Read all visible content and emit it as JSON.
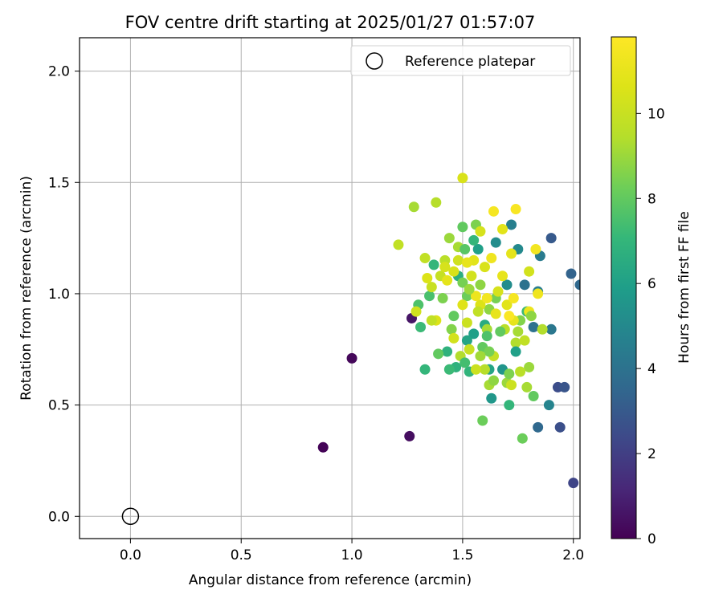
{
  "chart_data": {
    "type": "scatter",
    "title": "FOV centre drift starting at 2025/01/27 01:57:07",
    "xlabel": "Angular distance from reference (arcmin)",
    "ylabel": "Rotation from reference (arcmin)",
    "xlim": [
      -0.23,
      2.03
    ],
    "ylim": [
      -0.1,
      2.15
    ],
    "x_ticks": [
      "0.0",
      "0.5",
      "1.0",
      "1.5",
      "2.0"
    ],
    "y_ticks": [
      "0.0",
      "0.5",
      "1.0",
      "1.5",
      "2.0"
    ],
    "grid": true,
    "legend": {
      "placement": "top-right",
      "entries": [
        "Reference platepar"
      ]
    },
    "reference_point": {
      "x": 0.0,
      "y": 0.0,
      "label": "Reference platepar"
    },
    "colorbar": {
      "label": "Hours from first FF file",
      "colormap": "viridis",
      "range": [
        0,
        11.8
      ],
      "ticks": [
        "0",
        "2",
        "4",
        "6",
        "8",
        "10"
      ]
    },
    "points": [
      {
        "x": 0.87,
        "y": 0.31,
        "c": 0.1
      },
      {
        "x": 1.0,
        "y": 0.71,
        "c": 0.2
      },
      {
        "x": 1.26,
        "y": 0.36,
        "c": 0.4
      },
      {
        "x": 1.27,
        "y": 0.89,
        "c": 0.6
      },
      {
        "x": 2.0,
        "y": 0.15,
        "c": 2.2
      },
      {
        "x": 1.93,
        "y": 0.58,
        "c": 2.5
      },
      {
        "x": 1.94,
        "y": 0.4,
        "c": 2.6
      },
      {
        "x": 1.96,
        "y": 0.58,
        "c": 2.8
      },
      {
        "x": 1.9,
        "y": 1.25,
        "c": 3.0
      },
      {
        "x": 1.99,
        "y": 1.09,
        "c": 3.4
      },
      {
        "x": 2.03,
        "y": 1.04,
        "c": 3.6
      },
      {
        "x": 1.84,
        "y": 0.4,
        "c": 3.6
      },
      {
        "x": 1.82,
        "y": 0.85,
        "c": 4.0
      },
      {
        "x": 1.9,
        "y": 0.84,
        "c": 4.2
      },
      {
        "x": 1.78,
        "y": 1.04,
        "c": 4.0
      },
      {
        "x": 1.85,
        "y": 1.17,
        "c": 4.4
      },
      {
        "x": 1.72,
        "y": 1.31,
        "c": 4.6
      },
      {
        "x": 1.89,
        "y": 0.5,
        "c": 4.8
      },
      {
        "x": 1.84,
        "y": 1.01,
        "c": 4.5
      },
      {
        "x": 1.75,
        "y": 1.2,
        "c": 5.0
      },
      {
        "x": 1.65,
        "y": 1.23,
        "c": 5.2
      },
      {
        "x": 1.7,
        "y": 1.04,
        "c": 5.2
      },
      {
        "x": 1.68,
        "y": 0.66,
        "c": 5.5
      },
      {
        "x": 1.63,
        "y": 0.53,
        "c": 5.6
      },
      {
        "x": 1.57,
        "y": 1.2,
        "c": 6.0
      },
      {
        "x": 1.55,
        "y": 0.82,
        "c": 6.0
      },
      {
        "x": 1.62,
        "y": 0.66,
        "c": 6.2
      },
      {
        "x": 1.6,
        "y": 0.86,
        "c": 6.5
      },
      {
        "x": 1.52,
        "y": 0.79,
        "c": 6.2
      },
      {
        "x": 1.48,
        "y": 1.08,
        "c": 6.6
      },
      {
        "x": 1.43,
        "y": 0.74,
        "c": 6.8
      },
      {
        "x": 1.47,
        "y": 0.67,
        "c": 6.8
      },
      {
        "x": 1.53,
        "y": 0.65,
        "c": 6.9
      },
      {
        "x": 1.71,
        "y": 0.5,
        "c": 7.0
      },
      {
        "x": 1.77,
        "y": 0.35,
        "c": 8.2
      },
      {
        "x": 1.82,
        "y": 0.54,
        "c": 8.0
      },
      {
        "x": 1.44,
        "y": 0.66,
        "c": 7.2
      },
      {
        "x": 1.35,
        "y": 0.99,
        "c": 7.5
      },
      {
        "x": 1.31,
        "y": 0.85,
        "c": 7.2
      },
      {
        "x": 1.3,
        "y": 0.95,
        "c": 7.6
      },
      {
        "x": 1.33,
        "y": 0.66,
        "c": 7.0
      },
      {
        "x": 1.37,
        "y": 1.13,
        "c": 7.0
      },
      {
        "x": 1.5,
        "y": 1.3,
        "c": 8.0
      },
      {
        "x": 1.56,
        "y": 1.31,
        "c": 8.5
      },
      {
        "x": 1.55,
        "y": 1.24,
        "c": 7.0
      },
      {
        "x": 1.41,
        "y": 0.98,
        "c": 8.5
      },
      {
        "x": 1.46,
        "y": 0.9,
        "c": 8.0
      },
      {
        "x": 1.59,
        "y": 0.43,
        "c": 8.2
      },
      {
        "x": 1.59,
        "y": 0.76,
        "c": 8.0
      },
      {
        "x": 1.7,
        "y": 0.6,
        "c": 9.0
      },
      {
        "x": 1.74,
        "y": 0.78,
        "c": 9.4
      },
      {
        "x": 1.8,
        "y": 0.67,
        "c": 9.0
      },
      {
        "x": 1.76,
        "y": 0.88,
        "c": 8.6
      },
      {
        "x": 1.79,
        "y": 0.92,
        "c": 7.2
      },
      {
        "x": 1.65,
        "y": 0.98,
        "c": 8.4
      },
      {
        "x": 1.62,
        "y": 0.93,
        "c": 8.8
      },
      {
        "x": 1.52,
        "y": 0.99,
        "c": 8.2
      },
      {
        "x": 1.5,
        "y": 1.05,
        "c": 8.4
      },
      {
        "x": 1.45,
        "y": 0.84,
        "c": 8.6
      },
      {
        "x": 1.39,
        "y": 0.73,
        "c": 8.0
      },
      {
        "x": 1.28,
        "y": 1.39,
        "c": 9.2
      },
      {
        "x": 1.38,
        "y": 1.41,
        "c": 9.5
      },
      {
        "x": 1.44,
        "y": 1.25,
        "c": 9.0
      },
      {
        "x": 1.42,
        "y": 1.15,
        "c": 9.6
      },
      {
        "x": 1.33,
        "y": 1.16,
        "c": 9.8
      },
      {
        "x": 1.36,
        "y": 1.03,
        "c": 10.0
      },
      {
        "x": 1.4,
        "y": 1.08,
        "c": 9.9
      },
      {
        "x": 1.48,
        "y": 1.15,
        "c": 10.2
      },
      {
        "x": 1.54,
        "y": 1.08,
        "c": 10.3
      },
      {
        "x": 1.6,
        "y": 1.12,
        "c": 10.5
      },
      {
        "x": 1.58,
        "y": 0.95,
        "c": 10.6
      },
      {
        "x": 1.66,
        "y": 1.01,
        "c": 10.4
      },
      {
        "x": 1.7,
        "y": 0.95,
        "c": 10.8
      },
      {
        "x": 1.73,
        "y": 0.88,
        "c": 11.0
      },
      {
        "x": 1.69,
        "y": 0.84,
        "c": 9.6
      },
      {
        "x": 1.61,
        "y": 0.84,
        "c": 9.2
      },
      {
        "x": 1.57,
        "y": 0.92,
        "c": 9.8
      },
      {
        "x": 1.52,
        "y": 0.87,
        "c": 10.1
      },
      {
        "x": 1.38,
        "y": 0.88,
        "c": 10.6
      },
      {
        "x": 1.29,
        "y": 0.92,
        "c": 10.2
      },
      {
        "x": 1.21,
        "y": 1.22,
        "c": 9.8
      },
      {
        "x": 1.5,
        "y": 1.52,
        "c": 10.5
      },
      {
        "x": 1.58,
        "y": 1.28,
        "c": 10.4
      },
      {
        "x": 1.68,
        "y": 1.29,
        "c": 10.8
      },
      {
        "x": 1.64,
        "y": 1.37,
        "c": 11.5
      },
      {
        "x": 1.74,
        "y": 1.38,
        "c": 11.6
      },
      {
        "x": 1.72,
        "y": 1.18,
        "c": 10.9
      },
      {
        "x": 1.8,
        "y": 1.1,
        "c": 10.3
      },
      {
        "x": 1.83,
        "y": 1.2,
        "c": 11.4
      },
      {
        "x": 1.84,
        "y": 1.0,
        "c": 11.3
      },
      {
        "x": 1.8,
        "y": 0.92,
        "c": 11.2
      },
      {
        "x": 1.78,
        "y": 0.79,
        "c": 9.8
      },
      {
        "x": 1.76,
        "y": 0.65,
        "c": 9.6
      },
      {
        "x": 1.72,
        "y": 0.59,
        "c": 10.1
      },
      {
        "x": 1.62,
        "y": 0.59,
        "c": 9.2
      },
      {
        "x": 1.6,
        "y": 0.66,
        "c": 9.5
      },
      {
        "x": 1.56,
        "y": 0.66,
        "c": 10.1
      },
      {
        "x": 1.64,
        "y": 0.72,
        "c": 9.9
      },
      {
        "x": 1.49,
        "y": 0.72,
        "c": 9.4
      },
      {
        "x": 1.53,
        "y": 0.75,
        "c": 10.0
      },
      {
        "x": 1.46,
        "y": 0.8,
        "c": 10.3
      },
      {
        "x": 1.5,
        "y": 0.95,
        "c": 10.7
      },
      {
        "x": 1.56,
        "y": 0.99,
        "c": 11.2
      },
      {
        "x": 1.61,
        "y": 0.98,
        "c": 11.4
      },
      {
        "x": 1.65,
        "y": 0.91,
        "c": 11.0
      },
      {
        "x": 1.71,
        "y": 0.9,
        "c": 11.7
      },
      {
        "x": 1.73,
        "y": 0.98,
        "c": 11.5
      },
      {
        "x": 1.68,
        "y": 1.08,
        "c": 11.0
      },
      {
        "x": 1.63,
        "y": 1.16,
        "c": 11.3
      },
      {
        "x": 1.55,
        "y": 1.15,
        "c": 10.8
      },
      {
        "x": 1.46,
        "y": 1.1,
        "c": 10.5
      },
      {
        "x": 1.43,
        "y": 1.06,
        "c": 10.9
      },
      {
        "x": 1.53,
        "y": 1.02,
        "c": 9.0
      },
      {
        "x": 1.58,
        "y": 1.04,
        "c": 8.8
      },
      {
        "x": 1.48,
        "y": 1.21,
        "c": 9.2
      },
      {
        "x": 1.51,
        "y": 1.2,
        "c": 7.8
      },
      {
        "x": 1.61,
        "y": 0.81,
        "c": 7.6
      },
      {
        "x": 1.67,
        "y": 0.83,
        "c": 8.0
      },
      {
        "x": 1.75,
        "y": 0.83,
        "c": 9.2
      },
      {
        "x": 1.86,
        "y": 0.84,
        "c": 9.4
      },
      {
        "x": 1.81,
        "y": 0.9,
        "c": 8.8
      },
      {
        "x": 1.79,
        "y": 0.58,
        "c": 9.2
      },
      {
        "x": 1.71,
        "y": 0.64,
        "c": 8.5
      },
      {
        "x": 1.64,
        "y": 0.61,
        "c": 8.8
      },
      {
        "x": 1.74,
        "y": 0.74,
        "c": 6.0
      },
      {
        "x": 1.62,
        "y": 0.74,
        "c": 8.4
      },
      {
        "x": 1.58,
        "y": 0.72,
        "c": 9.1
      },
      {
        "x": 1.51,
        "y": 0.69,
        "c": 7.4
      },
      {
        "x": 1.36,
        "y": 0.88,
        "c": 9.8
      },
      {
        "x": 1.34,
        "y": 1.07,
        "c": 10.6
      },
      {
        "x": 1.52,
        "y": 1.14,
        "c": 11.0
      },
      {
        "x": 1.42,
        "y": 1.12,
        "c": 10.4
      }
    ]
  }
}
